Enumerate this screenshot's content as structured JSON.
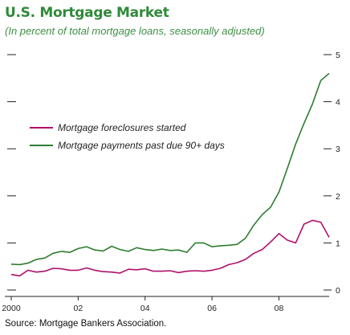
{
  "title": "U.S. Mortgage Market",
  "subtitle": "(In percent of total mortgage loans, seasonally adjusted)",
  "source": "Source: Mortgage Bankers Association.",
  "colors": {
    "foreclosures": "#b0106a",
    "past_due": "#2e7d32",
    "axis": "#222222"
  },
  "chart_data": {
    "type": "line",
    "title": "U.S. Mortgage Market",
    "subtitle": "(In percent of total mortgage loans, seasonally adjusted)",
    "xlabel": "",
    "ylabel": "",
    "xlim": [
      2000.0,
      2009.5
    ],
    "ylim": [
      0,
      5
    ],
    "x_ticks": [
      {
        "value": 2000,
        "label": "2000"
      },
      {
        "value": 2002,
        "label": "02"
      },
      {
        "value": 2004,
        "label": "04"
      },
      {
        "value": 2006,
        "label": "06"
      },
      {
        "value": 2008,
        "label": "08"
      }
    ],
    "y_ticks": [
      {
        "value": 0,
        "label": "0"
      },
      {
        "value": 1,
        "label": "1"
      },
      {
        "value": 2,
        "label": "2"
      },
      {
        "value": 3,
        "label": "3"
      },
      {
        "value": 4,
        "label": "4"
      },
      {
        "value": 5,
        "label": "5"
      }
    ],
    "grid": false,
    "legend_position": "upper-left",
    "series": [
      {
        "name": "Mortgage foreclosures started",
        "color": "#b0106a",
        "points": [
          [
            2000.0,
            0.33
          ],
          [
            2000.25,
            0.3
          ],
          [
            2000.5,
            0.42
          ],
          [
            2000.75,
            0.38
          ],
          [
            2001.0,
            0.4
          ],
          [
            2001.25,
            0.46
          ],
          [
            2001.5,
            0.45
          ],
          [
            2001.75,
            0.42
          ],
          [
            2002.0,
            0.42
          ],
          [
            2002.25,
            0.47
          ],
          [
            2002.5,
            0.42
          ],
          [
            2002.75,
            0.39
          ],
          [
            2003.0,
            0.38
          ],
          [
            2003.25,
            0.36
          ],
          [
            2003.5,
            0.44
          ],
          [
            2003.75,
            0.43
          ],
          [
            2004.0,
            0.45
          ],
          [
            2004.25,
            0.4
          ],
          [
            2004.5,
            0.4
          ],
          [
            2004.75,
            0.41
          ],
          [
            2005.0,
            0.37
          ],
          [
            2005.25,
            0.4
          ],
          [
            2005.5,
            0.41
          ],
          [
            2005.75,
            0.4
          ],
          [
            2006.0,
            0.42
          ],
          [
            2006.25,
            0.46
          ],
          [
            2006.5,
            0.54
          ],
          [
            2006.75,
            0.58
          ],
          [
            2007.0,
            0.65
          ],
          [
            2007.25,
            0.78
          ],
          [
            2007.5,
            0.86
          ],
          [
            2007.75,
            1.02
          ],
          [
            2008.0,
            1.2
          ],
          [
            2008.25,
            1.06
          ],
          [
            2008.5,
            1.0
          ],
          [
            2008.75,
            1.4
          ],
          [
            2009.0,
            1.48
          ],
          [
            2009.25,
            1.44
          ],
          [
            2009.5,
            1.12
          ]
        ]
      },
      {
        "name": "Mortgage payments past due 90+ days",
        "color": "#2e7d32",
        "points": [
          [
            2000.0,
            0.55
          ],
          [
            2000.25,
            0.54
          ],
          [
            2000.5,
            0.57
          ],
          [
            2000.75,
            0.65
          ],
          [
            2001.0,
            0.68
          ],
          [
            2001.25,
            0.78
          ],
          [
            2001.5,
            0.82
          ],
          [
            2001.75,
            0.8
          ],
          [
            2002.0,
            0.88
          ],
          [
            2002.25,
            0.92
          ],
          [
            2002.5,
            0.85
          ],
          [
            2002.75,
            0.83
          ],
          [
            2003.0,
            0.93
          ],
          [
            2003.25,
            0.86
          ],
          [
            2003.5,
            0.82
          ],
          [
            2003.75,
            0.9
          ],
          [
            2004.0,
            0.86
          ],
          [
            2004.25,
            0.84
          ],
          [
            2004.5,
            0.87
          ],
          [
            2004.75,
            0.84
          ],
          [
            2005.0,
            0.85
          ],
          [
            2005.25,
            0.8
          ],
          [
            2005.5,
            1.0
          ],
          [
            2005.75,
            1.0
          ],
          [
            2006.0,
            0.92
          ],
          [
            2006.25,
            0.94
          ],
          [
            2006.5,
            0.95
          ],
          [
            2006.75,
            0.97
          ],
          [
            2007.0,
            1.1
          ],
          [
            2007.25,
            1.38
          ],
          [
            2007.5,
            1.6
          ],
          [
            2007.75,
            1.76
          ],
          [
            2008.0,
            2.08
          ],
          [
            2008.25,
            2.58
          ],
          [
            2008.5,
            3.1
          ],
          [
            2008.75,
            3.54
          ],
          [
            2009.0,
            3.95
          ],
          [
            2009.25,
            4.45
          ],
          [
            2009.5,
            4.6
          ]
        ]
      }
    ]
  }
}
